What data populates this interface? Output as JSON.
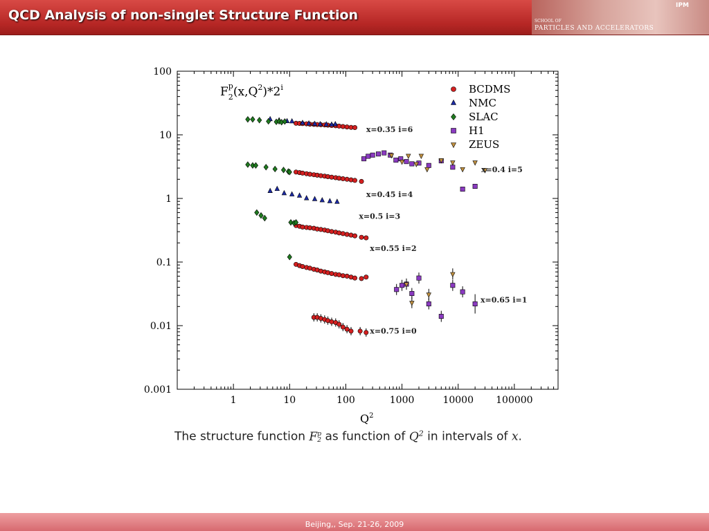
{
  "header": {
    "title": "QCD Analysis of non-singlet Structure Function",
    "banner_text": "PARTICLES AND ACCELERATORS",
    "banner_small": "SCHOOL OF",
    "logo": "IPM"
  },
  "footer": {
    "text": "Beijing,, Sep. 21-26, 2009"
  },
  "caption": {
    "prefix": "The structure function ",
    "symbol": "F",
    "symbol_sup": "p",
    "symbol_sub": "2",
    "middle": " as function of ",
    "q": "Q",
    "q_sup": "2",
    "suffix": " in intervals of ",
    "x": "x",
    "end": "."
  },
  "chart_data": {
    "type": "scatter",
    "title": "F2p(x,Q2)*2i",
    "title_parts": {
      "base": "F",
      "sub": "2",
      "sup1": "p",
      "mid": "(x,Q",
      "sup2": "2",
      "end": ")*2",
      "sup3": "i"
    },
    "xlabel": "Q2",
    "xscale": "log",
    "yscale": "log",
    "xlim": [
      0.1,
      600000
    ],
    "ylim": [
      0.001,
      100
    ],
    "xticks": [
      {
        "v": 1,
        "l": "1"
      },
      {
        "v": 10,
        "l": "10"
      },
      {
        "v": 100,
        "l": "100"
      },
      {
        "v": 1000,
        "l": "1000"
      },
      {
        "v": 10000,
        "l": "10000"
      },
      {
        "v": 100000,
        "l": "100000"
      }
    ],
    "yticks": [
      {
        "v": 0.001,
        "l": "0.001"
      },
      {
        "v": 0.01,
        "l": "0.01"
      },
      {
        "v": 0.1,
        "l": "0.1"
      },
      {
        "v": 1,
        "l": "1"
      },
      {
        "v": 10,
        "l": "10"
      },
      {
        "v": 100,
        "l": "100"
      }
    ],
    "legend_position": "top-right",
    "series": [
      {
        "name": "BCDMS",
        "marker": "circle",
        "color": "#d42020",
        "points": [
          [
            13,
            15.2
          ],
          [
            15,
            15.1
          ],
          [
            17,
            15
          ],
          [
            20,
            14.9
          ],
          [
            23,
            14.7
          ],
          [
            27,
            14.6
          ],
          [
            31,
            14.5
          ],
          [
            36,
            14.4
          ],
          [
            42,
            14.3
          ],
          [
            48,
            14.2
          ],
          [
            56,
            14
          ],
          [
            66,
            13.9
          ],
          [
            76,
            13.7
          ],
          [
            89,
            13.5
          ],
          [
            105,
            13.3
          ],
          [
            124,
            13.1
          ],
          [
            145,
            13
          ],
          [
            13,
            2.6
          ],
          [
            15,
            2.55
          ],
          [
            17,
            2.5
          ],
          [
            20,
            2.45
          ],
          [
            23,
            2.4
          ],
          [
            27,
            2.36
          ],
          [
            31,
            2.32
          ],
          [
            36,
            2.28
          ],
          [
            42,
            2.24
          ],
          [
            48,
            2.2
          ],
          [
            56,
            2.16
          ],
          [
            66,
            2.12
          ],
          [
            76,
            2.08
          ],
          [
            89,
            2.04
          ],
          [
            105,
            2.0
          ],
          [
            124,
            1.96
          ],
          [
            145,
            1.92
          ],
          [
            190,
            1.85
          ],
          [
            13,
            0.375
          ],
          [
            15,
            0.365
          ],
          [
            17,
            0.355
          ],
          [
            20,
            0.35
          ],
          [
            23,
            0.345
          ],
          [
            27,
            0.34
          ],
          [
            31,
            0.33
          ],
          [
            36,
            0.325
          ],
          [
            42,
            0.318
          ],
          [
            48,
            0.31
          ],
          [
            56,
            0.302
          ],
          [
            66,
            0.295
          ],
          [
            76,
            0.287
          ],
          [
            89,
            0.28
          ],
          [
            105,
            0.272
          ],
          [
            124,
            0.265
          ],
          [
            145,
            0.258
          ],
          [
            190,
            0.245
          ],
          [
            230,
            0.24
          ],
          [
            13,
            0.092
          ],
          [
            15,
            0.088
          ],
          [
            17,
            0.085
          ],
          [
            20,
            0.082
          ],
          [
            23,
            0.08
          ],
          [
            27,
            0.077
          ],
          [
            31,
            0.075
          ],
          [
            36,
            0.072
          ],
          [
            42,
            0.07
          ],
          [
            48,
            0.068
          ],
          [
            56,
            0.066
          ],
          [
            66,
            0.064
          ],
          [
            76,
            0.063
          ],
          [
            89,
            0.061
          ],
          [
            105,
            0.06
          ],
          [
            124,
            0.058
          ],
          [
            145,
            0.056
          ],
          [
            190,
            0.055
          ],
          [
            230,
            0.058
          ],
          [
            27,
            0.0135
          ],
          [
            31,
            0.0135
          ],
          [
            36,
            0.013
          ],
          [
            42,
            0.0125
          ],
          [
            48,
            0.012
          ],
          [
            56,
            0.0115
          ],
          [
            66,
            0.0112
          ],
          [
            76,
            0.0105
          ],
          [
            89,
            0.0095
          ],
          [
            105,
            0.0088
          ],
          [
            124,
            0.0082
          ],
          [
            180,
            0.0082
          ],
          [
            230,
            0.0078
          ]
        ]
      },
      {
        "name": "NMC",
        "marker": "triangle-up",
        "color": "#1c2aa6",
        "points": [
          [
            4.5,
            17.5
          ],
          [
            6.5,
            16.8
          ],
          [
            9,
            16.3
          ],
          [
            11,
            16.2
          ],
          [
            17,
            15.3
          ],
          [
            22,
            15
          ],
          [
            28,
            14.8
          ],
          [
            35,
            14.6
          ],
          [
            45,
            14.5
          ],
          [
            56,
            14.4
          ],
          [
            65,
            14.6
          ],
          [
            4.5,
            1.3
          ],
          [
            6,
            1.4
          ],
          [
            8,
            1.2
          ],
          [
            11,
            1.15
          ],
          [
            15,
            1.1
          ],
          [
            20,
            1.0
          ],
          [
            28,
            0.97
          ],
          [
            38,
            0.93
          ],
          [
            52,
            0.9
          ],
          [
            70,
            0.88
          ]
        ]
      },
      {
        "name": "SLAC",
        "marker": "diamond",
        "color": "#1f7a1f",
        "points": [
          [
            1.8,
            17.5
          ],
          [
            2.2,
            17.5
          ],
          [
            2.9,
            17
          ],
          [
            4.2,
            16.3
          ],
          [
            5.8,
            16
          ],
          [
            6.5,
            16.3
          ],
          [
            7.2,
            15.8
          ],
          [
            8.2,
            16.2
          ],
          [
            1.8,
            3.4
          ],
          [
            2.2,
            3.3
          ],
          [
            2.5,
            3.3
          ],
          [
            3.8,
            3.1
          ],
          [
            5.5,
            2.9
          ],
          [
            7.8,
            2.8
          ],
          [
            9.5,
            2.65
          ],
          [
            10,
            2.6
          ],
          [
            2.6,
            0.6
          ],
          [
            3.1,
            0.54
          ],
          [
            3.6,
            0.49
          ],
          [
            10.5,
            0.42
          ],
          [
            12,
            0.41
          ],
          [
            13,
            0.42
          ],
          [
            10,
            0.12
          ]
        ]
      },
      {
        "name": "H1",
        "marker": "square",
        "color": "#8a3ac0",
        "points": [
          [
            210,
            4.2
          ],
          [
            250,
            4.6
          ],
          [
            300,
            4.8
          ],
          [
            380,
            5
          ],
          [
            480,
            5.2
          ],
          [
            620,
            4.8
          ],
          [
            780,
            4
          ],
          [
            950,
            4.2
          ],
          [
            1200,
            3.8
          ],
          [
            1500,
            3.5
          ],
          [
            2000,
            3.6
          ],
          [
            3000,
            3.3
          ],
          [
            5000,
            3.9
          ],
          [
            8000,
            3.1
          ],
          [
            12000,
            1.4
          ],
          [
            20000,
            1.55
          ],
          [
            800,
            0.037
          ],
          [
            1000,
            0.043
          ],
          [
            1200,
            0.045
          ],
          [
            1500,
            0.032
          ],
          [
            2000,
            0.056
          ],
          [
            3000,
            0.022
          ],
          [
            5000,
            0.014
          ],
          [
            8000,
            0.043
          ],
          [
            12000,
            0.034
          ],
          [
            20000,
            0.022
          ]
        ]
      },
      {
        "name": "ZEUS",
        "marker": "triangle-down",
        "color": "#c09040",
        "points": [
          [
            650,
            4.8
          ],
          [
            1000,
            3.8
          ],
          [
            1300,
            4.7
          ],
          [
            1800,
            3.5
          ],
          [
            2200,
            4.7
          ],
          [
            2800,
            2.9
          ],
          [
            5000,
            4.0
          ],
          [
            8000,
            3.7
          ],
          [
            12000,
            2.9
          ],
          [
            20000,
            3.7
          ],
          [
            30000,
            2.8
          ],
          [
            1200,
            0.045
          ],
          [
            1500,
            0.023
          ],
          [
            3000,
            0.031
          ],
          [
            8000,
            0.065
          ]
        ]
      }
    ],
    "annotations": [
      {
        "text": "x=0.35  i=6",
        "x": 600,
        "y": 11
      },
      {
        "text": "x=0.4  i=5",
        "x": 60000,
        "y": 2.6
      },
      {
        "text": "x=0.45  i=4",
        "x": 600,
        "y": 1.05
      },
      {
        "text": "x=0.5  i=3",
        "x": 400,
        "y": 0.48
      },
      {
        "text": "x=0.55  i=2",
        "x": 700,
        "y": 0.15
      },
      {
        "text": "x=0.65  i=1",
        "x": 65000,
        "y": 0.023
      },
      {
        "text": "x=0.75  i=0",
        "x": 700,
        "y": 0.0075
      }
    ]
  }
}
